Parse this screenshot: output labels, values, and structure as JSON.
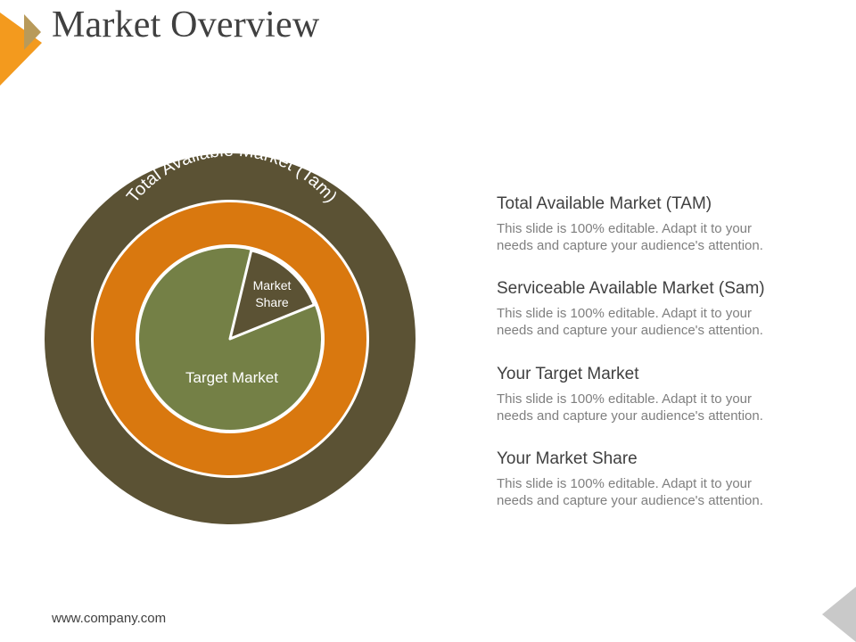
{
  "title": "Market Overview",
  "diagram": {
    "outer_ring_label": "Total Available Market (Tam)",
    "inner_label": "Target Market",
    "slice_label_line1": "Market",
    "slice_label_line2": "Share",
    "colors": {
      "outer": "#5b5234",
      "middle": "#d9780f",
      "inner": "#748046",
      "slice": "#5b5234",
      "separator": "#ffffff"
    }
  },
  "items": [
    {
      "heading": "Total Available Market (TAM)",
      "text": "This slide is 100% editable. Adapt it to your needs and capture your audience's attention."
    },
    {
      "heading": "Serviceable Available Market (Sam)",
      "text": "This slide is 100% editable. Adapt it to your needs and capture your audience's attention."
    },
    {
      "heading": "Your Target Market",
      "text": "This slide is 100% editable. Adapt it to your needs and capture your audience's attention."
    },
    {
      "heading": "Your Market Share",
      "text": "This slide is 100% editable. Adapt it to your needs and capture your audience's attention."
    }
  ],
  "footer": "www.company.com",
  "accent_colors": {
    "orange": "#f39a1e",
    "gray": "#c9c9c9"
  }
}
